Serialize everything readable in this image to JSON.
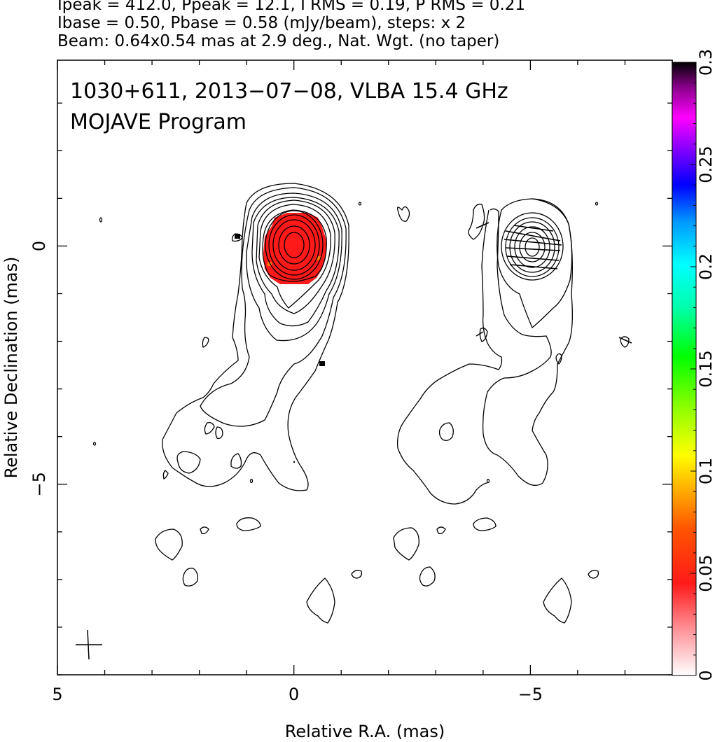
{
  "header": {
    "line1": "Ipeak = 412.0, Ppeak = 12.1, I RMS = 0.19, P RMS = 0.21",
    "line2": "Ibase = 0.50, Pbase = 0.58 (mJy/beam), steps: x 2",
    "line3": "Beam: 0.64x0.54 mas at 2.9 deg., Nat. Wgt. (no taper)"
  },
  "plot": {
    "title_line1": "1030+611, 2013−07−08, VLBA 15.4 GHz",
    "title_line2": "MOJAVE Program"
  },
  "chart_data": {
    "type": "heatmap",
    "subtype": "radio contour map with polarization color overlay",
    "xlabel": "Relative R.A. (mas)",
    "ylabel": "Relative Declination (mas)",
    "xlim": [
      5,
      -8
    ],
    "ylim": [
      -9,
      3.9
    ],
    "x_ticks": [
      5,
      0,
      -5
    ],
    "x_tick_labels": [
      "5",
      "0",
      "−5"
    ],
    "y_ticks": [
      0,
      -5
    ],
    "y_tick_labels": [
      "0",
      "−5"
    ],
    "colorbar": {
      "range": [
        0,
        0.3
      ],
      "ticks": [
        0,
        0.05,
        0.1,
        0.15,
        0.2,
        0.25,
        0.3
      ],
      "tick_labels": [
        "0",
        "0.05",
        "0.1",
        "0.15",
        "0.2",
        "0.25",
        "0.3"
      ]
    },
    "panels": [
      {
        "name": "Stokes I contours",
        "core": [
          0,
          0
        ]
      },
      {
        "name": "Polarized intensity contours with EVPA ticks",
        "core": [
          -5,
          0
        ]
      }
    ],
    "colors": {
      "contour": "#000000",
      "fractional_pol": "#ff1a1a"
    }
  }
}
